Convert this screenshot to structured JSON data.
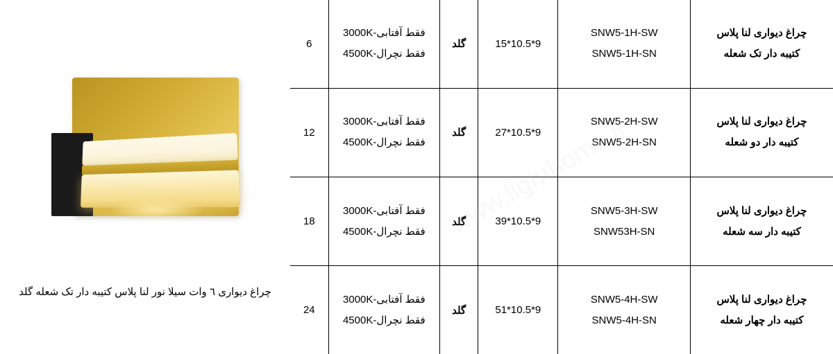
{
  "caption": "چراغ دیواری ٦ وات سیلا نور لنا پلاس کتیبه دار تک شعله گلد",
  "watermark": "www.lighthome.ir",
  "rows": [
    {
      "watt": "6",
      "temp1": "فقط آفتابی-3000K",
      "temp2": "فقط نچرال-4500K",
      "color": "گلد",
      "dim": "15*10.5*9",
      "model1": "SNW5-1H-SW",
      "model2": "SNW5-1H-SN",
      "name1": "چراغ دیواری لنا پلاس",
      "name2": "کتیبه دار تک شعله"
    },
    {
      "watt": "12",
      "temp1": "فقط آفتابی-3000K",
      "temp2": "فقط نچرال-4500K",
      "color": "گلد",
      "dim": "27*10.5*9",
      "model1": "SNW5-2H-SW",
      "model2": "SNW5-2H-SN",
      "name1": "چراغ دیواری لنا پلاس",
      "name2": "کتیبه دار دو شعله"
    },
    {
      "watt": "18",
      "temp1": "فقط آفتابی-3000K",
      "temp2": "فقط نچرال-4500K",
      "color": "گلد",
      "dim": "39*10.5*9",
      "model1": "SNW5-3H-SW",
      "model2": "SNW53H-SN",
      "name1": "چراغ دیواری لنا پلاس",
      "name2": "کتیبه دار سه شعله"
    },
    {
      "watt": "24",
      "temp1": "فقط آفتابی-3000K",
      "temp2": "فقط نچرال-4500K",
      "color": "گلد",
      "dim": "51*10.5*9",
      "model1": "SNW5-4H-SW",
      "model2": "SNW5-4H-SN",
      "name1": "چراغ دیواری لنا پلاس",
      "name2": "کتیبه دار چهار شعله"
    }
  ]
}
